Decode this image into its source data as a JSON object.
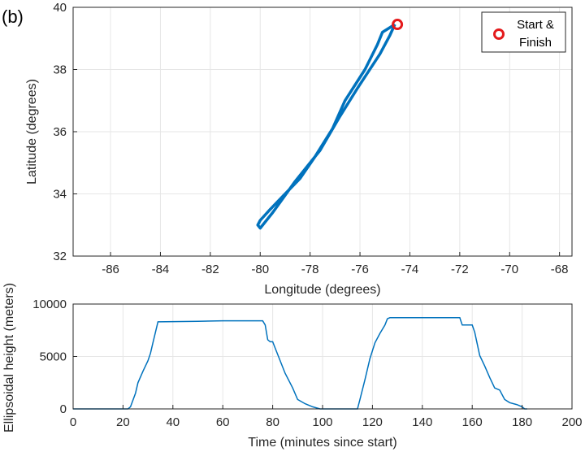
{
  "panel_label": "(b)",
  "chart_data": [
    {
      "type": "line",
      "name": "track",
      "xlabel": "Longitude (degrees)",
      "ylabel": "Latitude (degrees)",
      "xlim": [
        -87.5,
        -67.5
      ],
      "ylim": [
        32,
        40
      ],
      "xticks": [
        -86,
        -84,
        -82,
        -80,
        -78,
        -76,
        -74,
        -72,
        -70,
        -68
      ],
      "xtick_labels": [
        "-86",
        "-84",
        "-82",
        "-80",
        "-78",
        "-76",
        "-74",
        "-72",
        "-70",
        "-68"
      ],
      "yticks": [
        32,
        34,
        36,
        38,
        40
      ],
      "ytick_labels": [
        "32",
        "34",
        "36",
        "38",
        "40"
      ],
      "grid": true,
      "series_color": "#0072bd",
      "path": [
        [
          -74.6,
          39.45
        ],
        [
          -74.8,
          39.35
        ],
        [
          -75.1,
          39.2
        ],
        [
          -75.3,
          38.8
        ],
        [
          -75.8,
          38.0
        ],
        [
          -76.6,
          37.0
        ],
        [
          -77.1,
          36.1
        ],
        [
          -77.8,
          35.2
        ],
        [
          -78.4,
          34.5
        ],
        [
          -79.0,
          34.0
        ],
        [
          -79.6,
          33.5
        ],
        [
          -80.0,
          33.15
        ],
        [
          -80.1,
          33.0
        ],
        [
          -80.0,
          32.9
        ],
        [
          -79.5,
          33.4
        ],
        [
          -78.6,
          34.4
        ],
        [
          -77.6,
          35.4
        ],
        [
          -76.8,
          36.5
        ],
        [
          -76.1,
          37.4
        ],
        [
          -75.2,
          38.5
        ],
        [
          -74.8,
          39.1
        ],
        [
          -74.6,
          39.45
        ]
      ],
      "marker": {
        "x": -74.5,
        "y": 39.45,
        "color": "#e41a1c"
      },
      "legend": {
        "label_line1": "Start &",
        "label_line2": "Finish",
        "placement": "top-right"
      }
    },
    {
      "type": "line",
      "name": "height",
      "xlabel": "Time (minutes since start)",
      "ylabel": "Ellipsoidal height (meters)",
      "xlim": [
        0,
        200
      ],
      "ylim": [
        0,
        10000
      ],
      "xticks": [
        0,
        20,
        40,
        60,
        80,
        100,
        120,
        140,
        160,
        180,
        200
      ],
      "xtick_labels": [
        "0",
        "20",
        "40",
        "60",
        "80",
        "100",
        "120",
        "140",
        "160",
        "180",
        "200"
      ],
      "yticks": [
        0,
        5000,
        10000
      ],
      "ytick_labels": [
        "0",
        "5000",
        "10000"
      ],
      "grid": true,
      "series_color": "#0072bd",
      "x": [
        0,
        22,
        23,
        25,
        26,
        28,
        30,
        31,
        32,
        33,
        34,
        50,
        60,
        70,
        76,
        77,
        78,
        79,
        80,
        82,
        85,
        88,
        90,
        93,
        96,
        99,
        114,
        115,
        117,
        119,
        121,
        123,
        125,
        126,
        127,
        135,
        145,
        155,
        156,
        158,
        160,
        161,
        163,
        165,
        167,
        169,
        171,
        173,
        175,
        178,
        180,
        181,
        182
      ],
      "y": [
        0,
        0,
        200,
        1500,
        2500,
        3600,
        4600,
        5300,
        6300,
        7300,
        8300,
        8350,
        8400,
        8400,
        8400,
        8000,
        6600,
        6400,
        6400,
        5200,
        3400,
        2000,
        900,
        500,
        200,
        0,
        0,
        900,
        2800,
        4800,
        6300,
        7200,
        8000,
        8600,
        8700,
        8700,
        8700,
        8700,
        8000,
        8000,
        8000,
        7300,
        5100,
        4100,
        3000,
        2000,
        1800,
        900,
        600,
        400,
        200,
        0,
        0
      ]
    }
  ]
}
